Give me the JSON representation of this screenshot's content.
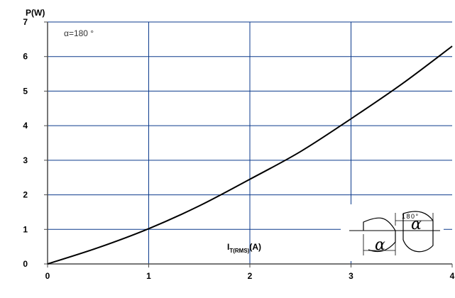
{
  "chart_data": {
    "type": "line",
    "title": "",
    "ylabel": "P(W)",
    "xlabel_main": "I",
    "xlabel_sub": "T(RMS)",
    "xlabel_unit": "(A)",
    "xlim": [
      0,
      4
    ],
    "ylim": [
      0,
      7
    ],
    "xticks": [
      0,
      1,
      2,
      3,
      4
    ],
    "yticks": [
      0,
      1,
      2,
      3,
      4,
      5,
      6,
      7
    ],
    "grid": true,
    "annotation": "α=180 °",
    "series": [
      {
        "color": "#000000",
        "x": [
          0,
          0.5,
          1.0,
          1.5,
          2.0,
          2.5,
          3.0,
          3.5,
          4.0
        ],
        "y": [
          0,
          0.47,
          1.02,
          1.68,
          2.45,
          3.25,
          4.2,
          5.2,
          6.3
        ]
      }
    ],
    "inset": {
      "alpha_label": "α",
      "angle_label": "180°"
    }
  },
  "colors": {
    "background": "#ffffff",
    "grid": "#0b3a8c",
    "axis": "#4a4a4a",
    "series": "#000000"
  }
}
